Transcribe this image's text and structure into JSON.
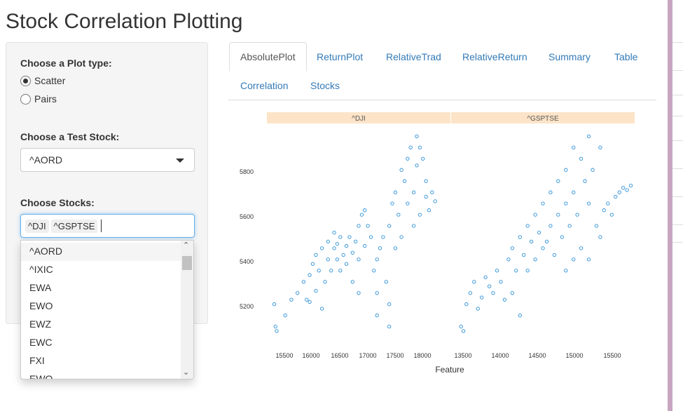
{
  "app": {
    "title": "Stock Correlation Plotting"
  },
  "sidebar": {
    "plot_type": {
      "label": "Choose a Plot type:",
      "options": [
        {
          "label": "Scatter",
          "checked": true
        },
        {
          "label": "Pairs",
          "checked": false
        }
      ]
    },
    "test_stock": {
      "label": "Choose a Test Stock:",
      "value": "^AORD"
    },
    "stocks": {
      "label": "Choose Stocks:",
      "selected": [
        "^DJI",
        "^GSPTSE"
      ],
      "options": [
        "^AORD",
        "^IXIC",
        "EWA",
        "EWO",
        "EWZ",
        "EWC",
        "FXI",
        "EWQ"
      ]
    }
  },
  "tabs": [
    {
      "label": "AbsolutePlot",
      "active": true
    },
    {
      "label": "ReturnPlot"
    },
    {
      "label": "RelativeTrad"
    },
    {
      "label": "RelativeReturn"
    },
    {
      "label": "Summary"
    },
    {
      "label": "Table"
    },
    {
      "label": "Correlation"
    },
    {
      "label": "Stocks"
    }
  ],
  "colors": {
    "point": "#2a8fd6",
    "strip": "#fde4c8",
    "accent": "#337ab7"
  },
  "chart_data": {
    "type": "scatter",
    "xlabel": "Feature",
    "ylabel": "",
    "yticks": [
      5200,
      5400,
      5600,
      5800
    ],
    "ylim": [
      5080,
      5970
    ],
    "panels": [
      {
        "name": "^DJI",
        "xlim": [
          15400,
          18400
        ],
        "xticks": [
          15500,
          16000,
          16500,
          17000,
          17500,
          18000
        ],
        "points": [
          [
            15520,
            5200
          ],
          [
            15540,
            5100
          ],
          [
            15560,
            5080
          ],
          [
            15700,
            5150
          ],
          [
            15800,
            5220
          ],
          [
            15900,
            5250
          ],
          [
            16000,
            5300
          ],
          [
            16050,
            5220
          ],
          [
            16100,
            5330
          ],
          [
            16150,
            5380
          ],
          [
            16200,
            5260
          ],
          [
            16200,
            5420
          ],
          [
            16250,
            5350
          ],
          [
            16300,
            5450
          ],
          [
            16350,
            5300
          ],
          [
            16400,
            5400
          ],
          [
            16400,
            5480
          ],
          [
            16450,
            5350
          ],
          [
            16500,
            5450
          ],
          [
            16500,
            5520
          ],
          [
            16550,
            5400
          ],
          [
            16550,
            5470
          ],
          [
            16600,
            5350
          ],
          [
            16600,
            5500
          ],
          [
            16650,
            5420
          ],
          [
            16700,
            5460
          ],
          [
            16700,
            5380
          ],
          [
            16750,
            5500
          ],
          [
            16800,
            5430
          ],
          [
            16800,
            5300
          ],
          [
            16850,
            5480
          ],
          [
            16900,
            5550
          ],
          [
            16900,
            5400
          ],
          [
            16950,
            5600
          ],
          [
            17000,
            5620
          ],
          [
            17000,
            5460
          ],
          [
            17050,
            5550
          ],
          [
            17100,
            5500
          ],
          [
            17150,
            5350
          ],
          [
            17200,
            5250
          ],
          [
            17200,
            5400
          ],
          [
            17250,
            5450
          ],
          [
            17300,
            5500
          ],
          [
            17350,
            5300
          ],
          [
            17400,
            5550
          ],
          [
            17400,
            5200
          ],
          [
            17450,
            5650
          ],
          [
            17500,
            5700
          ],
          [
            17500,
            5450
          ],
          [
            17550,
            5600
          ],
          [
            17600,
            5800
          ],
          [
            17600,
            5500
          ],
          [
            17650,
            5750
          ],
          [
            17700,
            5850
          ],
          [
            17700,
            5650
          ],
          [
            17750,
            5900
          ],
          [
            17800,
            5550
          ],
          [
            17800,
            5700
          ],
          [
            17850,
            5950
          ],
          [
            17850,
            5820
          ],
          [
            17900,
            5600
          ],
          [
            17900,
            5900
          ],
          [
            17950,
            5850
          ],
          [
            18000,
            5750
          ],
          [
            18000,
            5680
          ],
          [
            18050,
            5620
          ],
          [
            18100,
            5700
          ],
          [
            18150,
            5660
          ],
          [
            17200,
            5150
          ],
          [
            17400,
            5100
          ],
          [
            16300,
            5180
          ],
          [
            16100,
            5210
          ],
          [
            16900,
            5250
          ]
        ]
      },
      {
        "name": "^GSPTSE",
        "xlim": [
          13400,
          15800
        ],
        "xticks": [
          13500,
          14000,
          14500,
          15000,
          15500
        ],
        "points": [
          [
            13530,
            5100
          ],
          [
            13560,
            5080
          ],
          [
            13600,
            5200
          ],
          [
            13650,
            5250
          ],
          [
            13700,
            5300
          ],
          [
            13750,
            5180
          ],
          [
            13800,
            5230
          ],
          [
            13850,
            5320
          ],
          [
            13900,
            5280
          ],
          [
            14000,
            5350
          ],
          [
            14050,
            5300
          ],
          [
            14100,
            5220
          ],
          [
            14150,
            5400
          ],
          [
            14200,
            5450
          ],
          [
            14250,
            5350
          ],
          [
            14300,
            5500
          ],
          [
            14350,
            5420
          ],
          [
            14400,
            5550
          ],
          [
            14450,
            5480
          ],
          [
            14500,
            5600
          ],
          [
            14500,
            5400
          ],
          [
            14550,
            5520
          ],
          [
            14600,
            5650
          ],
          [
            14600,
            5450
          ],
          [
            14650,
            5480
          ],
          [
            14700,
            5700
          ],
          [
            14700,
            5550
          ],
          [
            14750,
            5420
          ],
          [
            14800,
            5600
          ],
          [
            14800,
            5750
          ],
          [
            14850,
            5500
          ],
          [
            14900,
            5800
          ],
          [
            14900,
            5650
          ],
          [
            14950,
            5550
          ],
          [
            15000,
            5900
          ],
          [
            15000,
            5700
          ],
          [
            15050,
            5600
          ],
          [
            15100,
            5850
          ],
          [
            15100,
            5450
          ],
          [
            15150,
            5750
          ],
          [
            15200,
            5950
          ],
          [
            15200,
            5650
          ],
          [
            15250,
            5800
          ],
          [
            15300,
            5550
          ],
          [
            15350,
            5900
          ],
          [
            15350,
            5500
          ],
          [
            15400,
            5620
          ],
          [
            15450,
            5650
          ],
          [
            15500,
            5600
          ],
          [
            15550,
            5680
          ],
          [
            15600,
            5700
          ],
          [
            15650,
            5720
          ],
          [
            15700,
            5710
          ],
          [
            15750,
            5730
          ],
          [
            14400,
            5350
          ],
          [
            14200,
            5250
          ],
          [
            14900,
            5350
          ],
          [
            15000,
            5400
          ],
          [
            15200,
            5400
          ],
          [
            13950,
            5250
          ],
          [
            14300,
            5150
          ]
        ]
      }
    ]
  }
}
